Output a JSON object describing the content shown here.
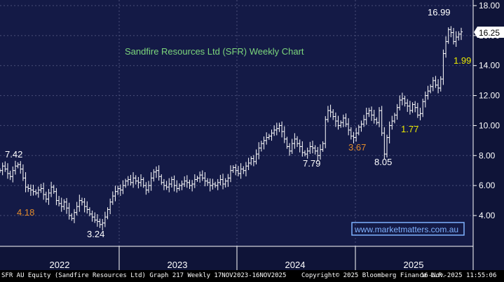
{
  "chart_data": {
    "type": "bar",
    "title": "Sandfire Resources Ltd (SFR) Weekly Chart",
    "watermark": "www.marketmatters.com.au",
    "last_price_label": "16.25",
    "ylim": [
      2.0,
      18.0
    ],
    "y_ticks": [
      "4.00",
      "6.00",
      "8.00",
      "10.00",
      "12.00",
      "14.00",
      "16.00",
      "18.00"
    ],
    "x_ticks": [
      "2022",
      "2023",
      "2024",
      "2025"
    ],
    "colors": {
      "plot_bg": "#141a46",
      "axis_bg": "#0f1438",
      "grid": "#4a4f78",
      "price": "#ffffff",
      "title": "#7cd67c",
      "label_white": "#ffffff",
      "label_orange": "#e08a2c",
      "label_yellow": "#e8e800",
      "tag_bg": "#ffffff",
      "tag_fg": "#000000",
      "watermark": "#7fb2ff"
    },
    "close": [
      7.0,
      7.3,
      7.1,
      6.8,
      6.6,
      7.0,
      7.3,
      7.4,
      7.1,
      6.5,
      5.9,
      5.8,
      5.7,
      5.6,
      5.5,
      5.7,
      5.8,
      5.4,
      5.1,
      5.5,
      5.9,
      5.6,
      5.0,
      4.8,
      4.6,
      4.9,
      4.5,
      4.0,
      3.8,
      4.2,
      4.6,
      5.0,
      4.9,
      4.6,
      4.4,
      4.1,
      3.9,
      3.7,
      3.6,
      3.4,
      3.5,
      3.9,
      4.4,
      4.9,
      5.3,
      5.6,
      5.8,
      5.7,
      6.0,
      6.3,
      6.4,
      6.2,
      6.5,
      6.3,
      6.2,
      6.4,
      6.0,
      5.7,
      6.0,
      6.5,
      6.9,
      7.0,
      6.6,
      6.2,
      6.0,
      5.9,
      6.1,
      6.4,
      6.0,
      5.8,
      6.0,
      6.1,
      6.3,
      6.2,
      6.0,
      6.1,
      6.4,
      6.5,
      6.7,
      6.5,
      6.3,
      6.2,
      6.0,
      6.1,
      6.0,
      6.2,
      6.4,
      6.1,
      6.3,
      6.5,
      7.0,
      7.2,
      7.0,
      6.8,
      7.1,
      7.0,
      7.3,
      7.5,
      7.8,
      7.6,
      8.1,
      8.5,
      8.8,
      9.0,
      9.2,
      9.3,
      9.5,
      9.7,
      9.8,
      10.0,
      9.6,
      9.1,
      8.6,
      8.3,
      8.8,
      9.1,
      8.8,
      8.6,
      8.2,
      8.1,
      8.3,
      8.6,
      8.5,
      8.3,
      8.0,
      8.4,
      8.8,
      10.4,
      11.0,
      10.9,
      10.6,
      10.3,
      10.0,
      10.2,
      10.5,
      10.1,
      9.7,
      9.3,
      9.2,
      9.5,
      9.9,
      10.1,
      10.4,
      10.8,
      11.0,
      10.7,
      10.4,
      10.2,
      11.0,
      9.5,
      8.1,
      9.2,
      10.0,
      10.3,
      10.7,
      11.2,
      11.7,
      11.8,
      11.5,
      11.3,
      11.0,
      11.4,
      11.2,
      10.7,
      10.8,
      11.6,
      12.0,
      12.3,
      12.6,
      13.0,
      12.7,
      12.5,
      13.1,
      14.8,
      15.6,
      16.4,
      16.2,
      15.6,
      15.9,
      16.1,
      16.25
    ],
    "annotations": [
      {
        "text": "7.42",
        "kind": "high",
        "color": "white"
      },
      {
        "text": "4.18",
        "kind": "range",
        "color": "orange"
      },
      {
        "text": "3.24",
        "kind": "low",
        "color": "white"
      },
      {
        "text": "7.79",
        "kind": "low",
        "color": "white"
      },
      {
        "text": "3.67",
        "kind": "range",
        "color": "orange"
      },
      {
        "text": "8.05",
        "kind": "low",
        "color": "white"
      },
      {
        "text": "1.77",
        "kind": "range",
        "color": "yellow"
      },
      {
        "text": "16.99",
        "kind": "high",
        "color": "white"
      },
      {
        "text": "1.99",
        "kind": "range",
        "color": "yellow"
      }
    ]
  },
  "footer": {
    "left": "SFR AU Equity (Sandfire Resources Ltd) Graph 217 Weekly 17NOV2023-16NOV2025",
    "middle": "Copyright© 2025 Bloomberg Finance L.P.",
    "right": "16-Nov-2025 11:55:06"
  }
}
